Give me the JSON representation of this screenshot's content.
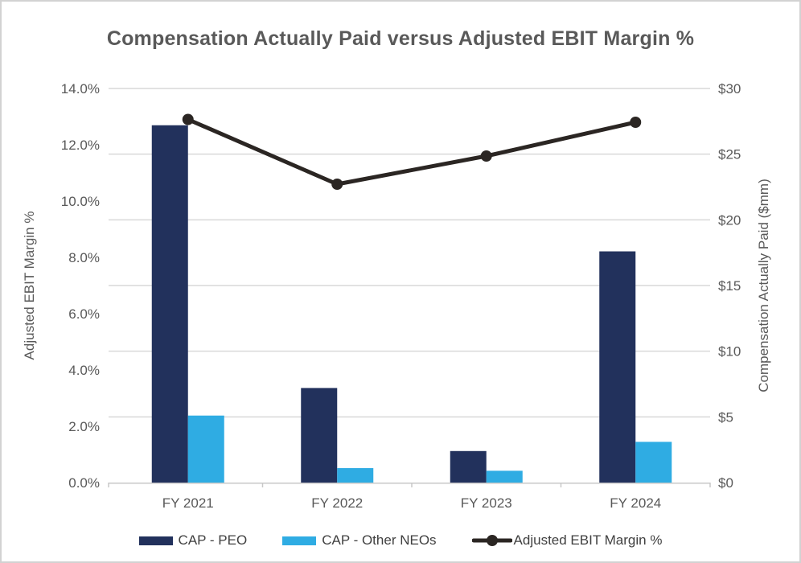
{
  "title": "Compensation Actually Paid versus Adjusted EBIT Margin %",
  "colors": {
    "cap_peo": "#22315c",
    "cap_other_neos": "#2face3",
    "ebit_line": "#2b2623",
    "title_text": "#595959",
    "tick_text": "#595959",
    "axis_title_text": "#595959",
    "legend_text": "#404040",
    "gridline": "#d9d9d9",
    "axis_line": "#c8c8c8",
    "background": "#ffffff",
    "frame_border": "#d2d2d2"
  },
  "chart_data": {
    "type": "bar",
    "subtype": "combo-bar-line-dual-axis",
    "title": "Compensation Actually Paid versus Adjusted EBIT Margin %",
    "categories": [
      "FY 2021",
      "FY 2022",
      "FY 2023",
      "FY 2024"
    ],
    "series": [
      {
        "name": "CAP - PEO",
        "kind": "bar",
        "axis": "right",
        "color": "#22315c",
        "values": [
          27.2,
          7.2,
          2.4,
          17.6
        ]
      },
      {
        "name": "CAP - Other NEOs",
        "kind": "bar",
        "axis": "right",
        "color": "#2face3",
        "values": [
          5.1,
          1.1,
          0.9,
          3.1
        ]
      },
      {
        "name": "Adjusted EBIT Margin %",
        "kind": "line",
        "axis": "left",
        "color": "#2b2623",
        "values": [
          12.9,
          10.6,
          11.6,
          12.8
        ]
      }
    ],
    "left_axis": {
      "title": "Adjusted EBIT Margin %",
      "min": 0,
      "max": 14,
      "tick_values": [
        0,
        2,
        4,
        6,
        8,
        10,
        12,
        14
      ],
      "tick_labels": [
        "0.0%",
        "2.0%",
        "4.0%",
        "6.0%",
        "8.0%",
        "10.0%",
        "12.0%",
        "14.0%"
      ]
    },
    "right_axis": {
      "title": "Compensation Actually Paid ($mm)",
      "min": 0,
      "max": 30,
      "tick_values": [
        0,
        5,
        10,
        15,
        20,
        25,
        30
      ],
      "tick_labels": [
        "$0",
        "$5",
        "$10",
        "$15",
        "$20",
        "$25",
        "$30"
      ]
    },
    "gridlines": "horizontal-major-right-axis",
    "legend_position": "bottom"
  }
}
